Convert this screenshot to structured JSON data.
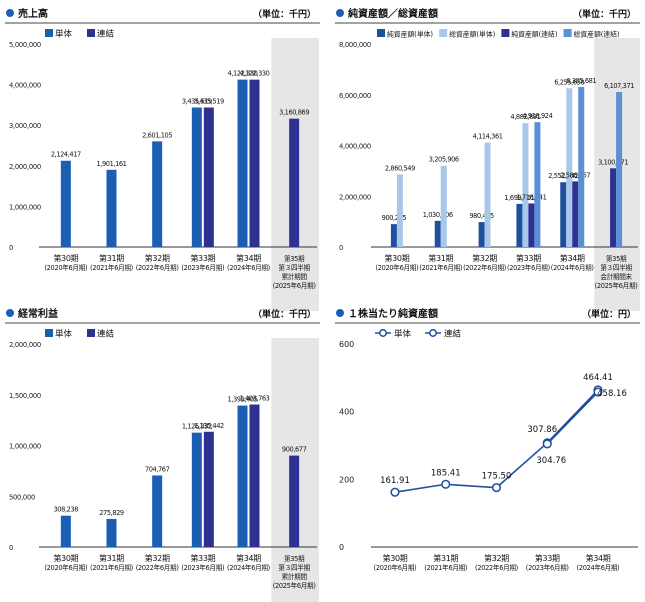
{
  "colors": {
    "single": "#1a5fb4",
    "consolidated": "#2e3192",
    "na_single": "#1f4e9c",
    "ta_single": "#a8c8ea",
    "na_consolidated": "#2e3192",
    "ta_consolidated": "#5b8fd6",
    "line": "#1f4fa0",
    "axis": "#333333",
    "shade": "#e6e6e6",
    "marker": "#1a5fb4"
  },
  "chart_data": [
    {
      "id": "sales",
      "type": "bar",
      "title": "売上高",
      "unit": "（単位：千円）",
      "categories": [
        [
          "第30期",
          "(2020年6月期)"
        ],
        [
          "第31期",
          "(2021年6月期)"
        ],
        [
          "第32期",
          "(2022年6月期)"
        ],
        [
          "第33期",
          "(2023年6月期)"
        ],
        [
          "第34期",
          "(2024年6月期)"
        ],
        [
          "第35期",
          "第３四半期",
          "累計期間",
          "(2025年6月期)"
        ]
      ],
      "series": [
        {
          "name": "単体",
          "values": [
            2124417,
            1901161,
            2601105,
            3435519,
            4122330,
            null
          ],
          "labels": [
            "2,124,417",
            "1,901,161",
            "2,601,105",
            "3,435,519",
            "4,122,330",
            ""
          ]
        },
        {
          "name": "連結",
          "values": [
            null,
            null,
            null,
            3435519,
            4122330,
            3160869
          ],
          "labels": [
            "",
            "",
            "",
            "3,435,519",
            "4,122,330",
            "3,160,869"
          ]
        }
      ],
      "ylim": [
        0,
        5000000
      ],
      "yticks": [
        0,
        1000000,
        2000000,
        3000000,
        4000000,
        5000000
      ],
      "ytick_labels": [
        "0",
        "1,000,000",
        "2,000,000",
        "3,000,000",
        "4,000,000",
        "5,000,000"
      ],
      "shaded_last_category": true
    },
    {
      "id": "assets",
      "type": "bar",
      "title": "純資産額／総資産額",
      "unit": "（単位：千円）",
      "categories": [
        [
          "第30期",
          "(2020年6月期)"
        ],
        [
          "第31期",
          "(2021年6月期)"
        ],
        [
          "第32期",
          "(2022年6月期)"
        ],
        [
          "第33期",
          "(2023年6月期)"
        ],
        [
          "第34期",
          "(2024年6月期)"
        ],
        [
          "第35期",
          "第３四半期",
          "会計期間末",
          "(2025年6月期)"
        ]
      ],
      "series": [
        {
          "name": "純資産額(単体)",
          "values": [
            900225,
            1030906,
            980465,
            1699161,
            2552042,
            null
          ],
          "labels": [
            "900,225",
            "1,030,906",
            "980,465",
            "1,699,161",
            "2,552,042",
            ""
          ]
        },
        {
          "name": "総資産額(単体)",
          "values": [
            2860549,
            3205906,
            4114361,
            4882891,
            6255658,
            null
          ],
          "labels": [
            "2,860,549",
            "3,205,906",
            "4,114,361",
            "4,882,891",
            "6,255,658",
            ""
          ]
        },
        {
          "name": "純資産額(連結)",
          "values": [
            null,
            null,
            null,
            1716641,
            2586857,
            3100671
          ],
          "labels": [
            "",
            "",
            "",
            "1,716,641",
            "2,586,857",
            "3,100,671"
          ]
        },
        {
          "name": "総資産額(連結)",
          "values": [
            null,
            null,
            null,
            4918924,
            6305681,
            6107371
          ],
          "labels": [
            "",
            "",
            "",
            "4,918,924",
            "6,305,681",
            "6,107,371"
          ]
        }
      ],
      "ylim": [
        0,
        8000000
      ],
      "yticks": [
        0,
        2000000,
        4000000,
        6000000,
        8000000
      ],
      "ytick_labels": [
        "0",
        "2,000,000",
        "4,000,000",
        "6,000,000",
        "8,000,000"
      ],
      "shaded_last_category": true
    },
    {
      "id": "ordinary",
      "type": "bar",
      "title": "経常利益",
      "unit": "（単位：千円）",
      "categories": [
        [
          "第30期",
          "(2020年6月期)"
        ],
        [
          "第31期",
          "(2021年6月期)"
        ],
        [
          "第32期",
          "(2022年6月期)"
        ],
        [
          "第33期",
          "(2023年6月期)"
        ],
        [
          "第34期",
          "(2024年6月期)"
        ],
        [
          "第35期",
          "第３四半期",
          "累計期間",
          "(2025年6月期)"
        ]
      ],
      "series": [
        {
          "name": "単体",
          "values": [
            308238,
            275829,
            704767,
            1126332,
            1393405,
            null
          ],
          "labels": [
            "308,238",
            "275,829",
            "704,767",
            "1,126,332",
            "1,393,405",
            ""
          ]
        },
        {
          "name": "連結",
          "values": [
            null,
            null,
            null,
            1135442,
            1403763,
            900677
          ],
          "labels": [
            "",
            "",
            "",
            "1,135,442",
            "1,403,763",
            "900,677"
          ]
        }
      ],
      "ylim": [
        0,
        2000000
      ],
      "yticks": [
        0,
        500000,
        1000000,
        1500000,
        2000000
      ],
      "ytick_labels": [
        "0",
        "500,000",
        "1,000,000",
        "1,500,000",
        "2,000,000"
      ],
      "shaded_last_category": true
    },
    {
      "id": "bps",
      "type": "line",
      "title": "１株当たり純資産額",
      "unit": "（単位：円）",
      "categories": [
        [
          "第30期",
          "(2020年6月期)"
        ],
        [
          "第31期",
          "(2021年6月期)"
        ],
        [
          "第32期",
          "(2022年6月期)"
        ],
        [
          "第33期",
          "(2023年6月期)"
        ],
        [
          "第34期",
          "(2024年6月期)"
        ]
      ],
      "series": [
        {
          "name": "単体",
          "values": [
            161.91,
            185.41,
            175.5,
            307.86,
            464.41
          ],
          "labels": [
            "161.91",
            "185.41",
            "175.50",
            "307.86",
            "464.41"
          ]
        },
        {
          "name": "連結",
          "values": [
            null,
            null,
            null,
            304.76,
            458.16
          ],
          "labels": [
            "",
            "",
            "",
            "304.76",
            "458.16"
          ]
        }
      ],
      "ylim": [
        0,
        600
      ],
      "yticks": [
        0,
        200,
        400,
        600
      ],
      "ytick_labels": [
        "0",
        "200",
        "400",
        "600"
      ]
    }
  ]
}
